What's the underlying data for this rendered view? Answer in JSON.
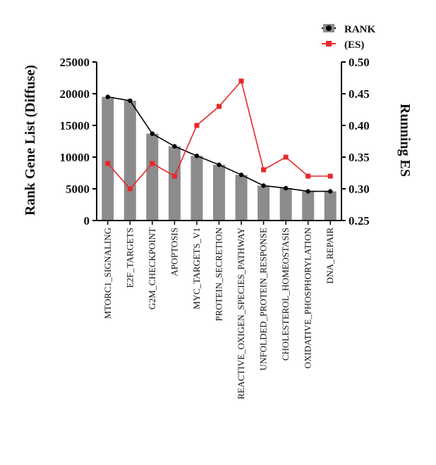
{
  "chart_data": {
    "type": "bar",
    "categories": [
      "MTORC1_SIGNALING",
      "E2F_TARGETS",
      "G2M_CHECKPOINT",
      "APOPTOSIS",
      "MYC_TARGETS_V1",
      "PROTEIN_SECRETION",
      "REACTIVE_OXIGEN_SPECIES_PATHWAY",
      "UNFOLDED_PROTEIN_RESPONSE",
      "CHOLESTEROL_HOMEOSTASIS",
      "OXIDATIVE_PHOSPHORYLATION",
      "DNA_REPAIR"
    ],
    "series": [
      {
        "name": "RANK",
        "axis": "left",
        "render": "bar+line",
        "values": [
          19500,
          18900,
          13700,
          11700,
          10200,
          8800,
          7200,
          5500,
          5100,
          4600,
          4600
        ]
      },
      {
        "name": "(ES)",
        "axis": "right",
        "render": "line",
        "values": [
          0.34,
          0.3,
          0.34,
          0.32,
          0.4,
          0.43,
          0.47,
          0.33,
          0.35,
          0.32,
          0.32
        ]
      }
    ],
    "ylabel": "Rank Gene List (Diffuse)",
    "y2label": "Running ES",
    "ylim": [
      0,
      25000
    ],
    "y2lim": [
      0.25,
      0.5
    ],
    "yticks": [
      "0",
      "5000",
      "10000",
      "15000",
      "20000",
      "25000"
    ],
    "y2ticks": [
      "0.25",
      "0.30",
      "0.35",
      "0.40",
      "0.45",
      "0.50"
    ],
    "legend_position": "top-right",
    "grid": false,
    "colors": {
      "bar": "#8c8c8c",
      "rank_line": "#000000",
      "es_line": "#e8282b",
      "axis": "#000000"
    }
  }
}
